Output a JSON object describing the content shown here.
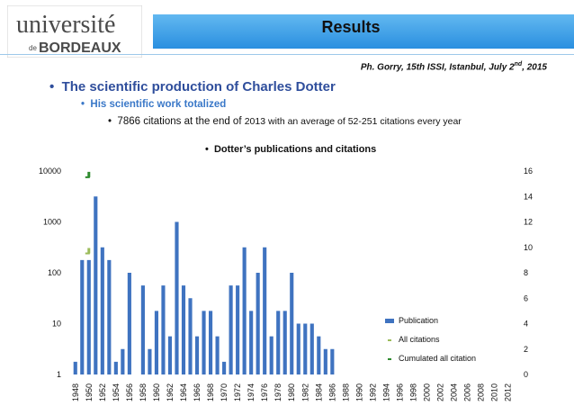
{
  "header": {
    "logo_line1": "université",
    "logo_de": "de",
    "logo_line2": "BORDEAUX",
    "title": "Results",
    "byline_pre": "Ph. Gorry, 15th ISSI, Istanbul, July 2",
    "byline_sup": "nd",
    "byline_post": ", 2015"
  },
  "bullets": {
    "b1": "The scientific production of Charles Dotter",
    "b2": "His scientific work totalized",
    "b3_a": "7866 citations at the end of ",
    "b3_b": "2013",
    "b3_c": " with an average of 52-251 citations every year",
    "b4": "Dotter’s publications and citations"
  },
  "colors": {
    "bar": "#3f73c0",
    "all_citations": "#9bbb59",
    "cumulated": "#2e8b2e",
    "header": "#2a8fe0"
  },
  "chart_data": {
    "type": "bar",
    "x": [
      1948,
      1949,
      1950,
      1951,
      1952,
      1953,
      1954,
      1955,
      1956,
      1957,
      1958,
      1959,
      1960,
      1961,
      1962,
      1963,
      1964,
      1965,
      1966,
      1967,
      1968,
      1969,
      1970,
      1971,
      1972,
      1973,
      1974,
      1975,
      1976,
      1977,
      1978,
      1979,
      1980,
      1981,
      1982,
      1983,
      1984,
      1985,
      1986,
      1987,
      1988,
      1989,
      1990,
      1991,
      1992,
      1993,
      1994,
      1995,
      1996,
      1997,
      1998,
      1999,
      2000,
      2001,
      2002,
      2003,
      2004,
      2005,
      2006,
      2007,
      2008,
      2009,
      2010,
      2011,
      2012,
      2013
    ],
    "xtick_labels": [
      "1948",
      "1950",
      "1952",
      "1954",
      "1956",
      "1958",
      "1960",
      "1962",
      "1964",
      "1966",
      "1968",
      "1970",
      "1972",
      "1974",
      "1976",
      "1978",
      "1980",
      "1982",
      "1984",
      "1986",
      "1988",
      "1990",
      "1992",
      "1994",
      "1996",
      "1998",
      "2000",
      "2002",
      "2004",
      "2006",
      "2008",
      "2010",
      "2012"
    ],
    "left_axis": {
      "scale": "log",
      "range": [
        1,
        10000
      ],
      "ticks": [
        "1",
        "10",
        "100",
        "1000",
        "10000"
      ]
    },
    "right_axis": {
      "scale": "linear",
      "range": [
        0,
        16
      ],
      "ticks": [
        "0",
        "2",
        "4",
        "6",
        "8",
        "10",
        "12",
        "14",
        "16"
      ]
    },
    "series": [
      {
        "name": "Publication",
        "axis": "right",
        "kind": "bar",
        "values": [
          1,
          9,
          9,
          14,
          10,
          9,
          1,
          2,
          8,
          0,
          7,
          2,
          5,
          7,
          3,
          12,
          7,
          6,
          3,
          5,
          5,
          3,
          1,
          7,
          7,
          10,
          5,
          8,
          10,
          3,
          5,
          5,
          8,
          4,
          4,
          4,
          3,
          2,
          2,
          0,
          0,
          0,
          0,
          0,
          0,
          0,
          0,
          0,
          0,
          0,
          0,
          0,
          0,
          0,
          0,
          0,
          0,
          0,
          0,
          0,
          0,
          0,
          0,
          0,
          0,
          0
        ]
      },
      {
        "name": "All citations",
        "axis": "left",
        "kind": "marker",
        "points": [
          {
            "x": 1950,
            "y": 250
          }
        ]
      },
      {
        "name": "Cumulated all citation",
        "axis": "left",
        "kind": "marker",
        "points": [
          {
            "x": 1950,
            "y": 7866
          }
        ]
      }
    ],
    "legend": "bottom-right",
    "grid": false
  }
}
